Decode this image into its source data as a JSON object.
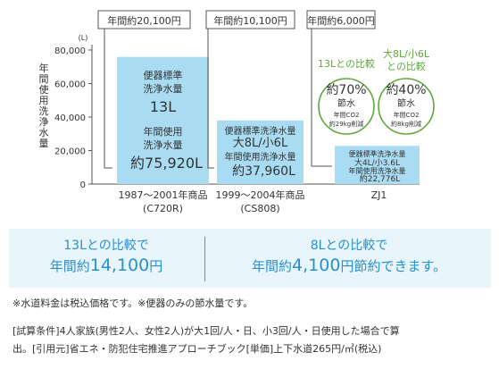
{
  "chart_data": {
    "type": "bar",
    "unit": "(L)",
    "ylabel": "年間使用洗浄水量",
    "ylim": [
      0,
      80000
    ],
    "yticks": [
      "0",
      "20,000",
      "40,000",
      "60,000",
      "80,000"
    ],
    "grid": false,
    "categories": [
      {
        "line1": "1987〜2001年商品",
        "line2": "(C720R)"
      },
      {
        "line1": "1999〜2004年商品",
        "line2": "(CS808)"
      },
      {
        "line1": "ZJ1",
        "line2": ""
      }
    ],
    "values": [
      75920,
      37960,
      22776
    ],
    "bar_color": "#a9dcf3",
    "cost_labels": [
      "年間約20,100円",
      "年間約10,100円",
      "年間約6,000円"
    ],
    "bar_labels": [
      {
        "lines": [
          "便器標準",
          "洗浄水量",
          "13L",
          "年間使用",
          "洗浄水量"
        ],
        "value": "約75,920L"
      },
      {
        "lines": [
          "便器標準洗浄水量",
          "大8L/小6L",
          "年間使用洗浄水量"
        ],
        "value": "約37,960L"
      },
      {
        "lines": [
          "便器標準洗浄水量",
          "大4L/小3.6L",
          "年間使用洗浄水量"
        ],
        "value": "約22,776L"
      }
    ],
    "savings": [
      {
        "caption": "13Lとの比較",
        "percent": "約70%",
        "label": "節水",
        "co2_1": "年間CO2",
        "co2_2": "約29kg削減"
      },
      {
        "caption": "大8L/小6L\nとの比較",
        "percent": "約40%",
        "label": "節水",
        "co2_1": "年間CO2",
        "co2_2": "約8kg削減"
      }
    ],
    "accent_green": "#5fa83b"
  },
  "comparison": {
    "left": {
      "line1": "13Lとの比較で",
      "pre": "年間約",
      "amount": "14,100",
      "post": "円"
    },
    "right": {
      "line1": "8Lとの比較で",
      "pre": "年間約",
      "amount": "4,100",
      "post": "円節約できます。"
    },
    "color": "#2a8fcd"
  },
  "notes": {
    "note1": "※水道料金は税込価格です。※便器のみの節水量です。",
    "note2": "[試算条件]4人家族(男性2人、女性2人)が大1回/人・日、小3回/人・日使用した場合で算",
    "note3": "出。[引用元]省エネ・防犯住宅推進アプローチブック[単価]上下水道265円/㎥(税込)"
  }
}
